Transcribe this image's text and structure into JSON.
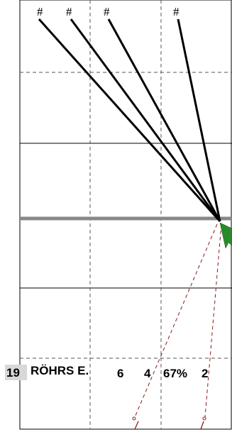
{
  "lines": {
    "hash_labels": [
      "#",
      "#",
      "#",
      "#"
    ]
  },
  "player_row": {
    "number": "19",
    "name": "RÖHRS E.",
    "stat_1": "6",
    "stat_2": "4",
    "percent": "67%",
    "stat_3": "2"
  },
  "colors": {
    "background": "#ffffff",
    "grid_solid": "#000000",
    "grid_dashed": "#555555",
    "center_bar": "#888888",
    "shot_line": "#000000",
    "dashed_path": "#8b1a1a",
    "marker": "#2a8a2a",
    "number_badge": "#d8d8d8"
  },
  "icons": {
    "endpoint_marker": "green-arrow-marker-icon",
    "path_end": "open-circle-icon"
  }
}
